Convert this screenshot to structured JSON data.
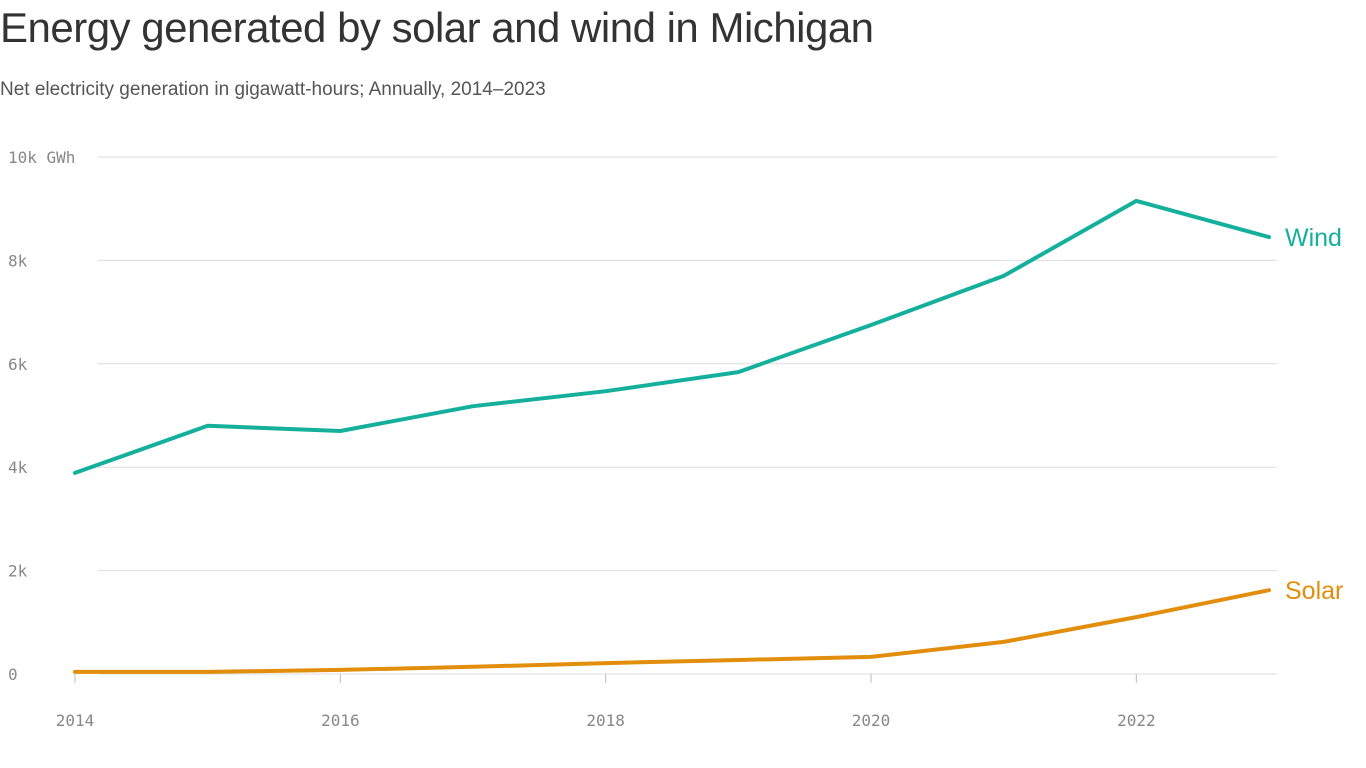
{
  "title": "Energy generated by solar and wind in Michigan",
  "subtitle": "Net electricity generation in gigawatt-hours; Annually, 2014–2023",
  "chart_data": {
    "type": "line",
    "title": "Energy generated by solar and wind in Michigan",
    "subtitle": "Net electricity generation in gigawatt-hours; Annually, 2014–2023",
    "x": [
      2014,
      2015,
      2016,
      2017,
      2018,
      2019,
      2020,
      2021,
      2022,
      2023
    ],
    "xticks": [
      2014,
      2016,
      2018,
      2020,
      2022
    ],
    "xtick_labels": [
      "2014",
      "2016",
      "2018",
      "2020",
      "2022"
    ],
    "yticks": [
      0,
      2000,
      4000,
      6000,
      8000,
      10000
    ],
    "ytick_labels": [
      "0",
      "2k",
      "4k",
      "6k",
      "8k",
      "10k GWh"
    ],
    "ylim": [
      0,
      10000
    ],
    "xlim": [
      2014,
      2023
    ],
    "grid": "horizontal",
    "legend": "direct labels at line ends",
    "series": [
      {
        "name": "Wind",
        "color": "#14b09c",
        "values": [
          3890,
          4800,
          4700,
          5180,
          5470,
          5840,
          6750,
          7700,
          9150,
          8450
        ]
      },
      {
        "name": "Solar",
        "color": "#e38d0c",
        "values": [
          40,
          40,
          80,
          140,
          210,
          270,
          330,
          620,
          1100,
          1620
        ]
      }
    ]
  }
}
